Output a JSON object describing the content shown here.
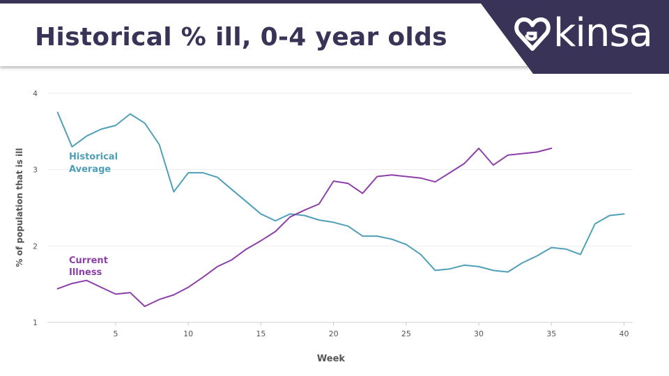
{
  "header": {
    "title": "Historical % ill, 0-4 year olds",
    "logo_text": "kinsa"
  },
  "colors": {
    "historical": "#4f9fb8",
    "current": "#8c3fa8",
    "title": "#3a3358",
    "grid": "#eeeeee",
    "tick": "#555555"
  },
  "chart_data": {
    "type": "line",
    "title": "Historical % ill, 0-4 year olds",
    "xlabel": "Week",
    "ylabel": "% of population that is ill",
    "xlim": [
      0.3,
      40.6
    ],
    "ylim": [
      1,
      4
    ],
    "xticks": [
      5,
      10,
      15,
      20,
      25,
      30,
      35,
      40
    ],
    "yticks": [
      1,
      2,
      3,
      4
    ],
    "grid": true,
    "series": [
      {
        "name": "Historical Average",
        "label_lines": [
          "Historical",
          "Average"
        ],
        "color": "#4f9fb8",
        "x": [
          1,
          2,
          3,
          4,
          5,
          6,
          7,
          8,
          9,
          10,
          11,
          12,
          13,
          14,
          15,
          16,
          17,
          18,
          19,
          20,
          21,
          22,
          23,
          24,
          25,
          26,
          27,
          28,
          29,
          30,
          31,
          32,
          33,
          34,
          35,
          36,
          37,
          38,
          39,
          40
        ],
        "values": [
          3.75,
          3.3,
          3.44,
          3.53,
          3.58,
          3.73,
          3.61,
          3.33,
          2.71,
          2.96,
          2.96,
          2.9,
          2.74,
          2.58,
          2.42,
          2.33,
          2.42,
          2.4,
          2.34,
          2.31,
          2.26,
          2.13,
          2.13,
          2.09,
          2.02,
          1.89,
          1.68,
          1.7,
          1.75,
          1.73,
          1.68,
          1.66,
          1.78,
          1.87,
          1.98,
          1.96,
          1.89,
          2.29,
          2.4,
          2.42
        ]
      },
      {
        "name": "Current Illness",
        "label_lines": [
          "Current",
          "Illness"
        ],
        "color": "#8c3fa8",
        "x": [
          1,
          2,
          3,
          4,
          5,
          6,
          7,
          8,
          9,
          10,
          11,
          12,
          13,
          14,
          15,
          16,
          17,
          18,
          19,
          20,
          21,
          22,
          23,
          24,
          25,
          26,
          27,
          28,
          29,
          30,
          31,
          32,
          33,
          34,
          35
        ],
        "values": [
          1.44,
          1.51,
          1.55,
          1.46,
          1.37,
          1.39,
          1.21,
          1.3,
          1.36,
          1.46,
          1.59,
          1.73,
          1.82,
          1.96,
          2.07,
          2.19,
          2.38,
          2.47,
          2.55,
          2.85,
          2.82,
          2.69,
          2.91,
          2.93,
          2.91,
          2.89,
          2.84,
          2.96,
          3.08,
          3.28,
          3.06,
          3.19,
          3.21,
          3.23,
          3.28
        ]
      }
    ]
  }
}
